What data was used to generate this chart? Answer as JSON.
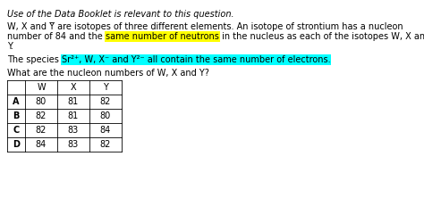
{
  "line1": "Use of the Data Booklet is relevant to this question.",
  "para1_line1": "W, X and Y̅ are isotopes of three different elements. An isotope of strontium has a nucleon",
  "para1_line2_pre": "number of 84 and the ",
  "para1_line2_hl": "same number of neutrons",
  "para1_line2_post": " in the nucleus as each of the isotopes W, X and",
  "para1_line3": "Y.",
  "para2_pre": "The species ",
  "para2_hl": "Sr²⁺, W, X⁻ and Y²⁻ all contain the same number of electrons.",
  "para3": "What are the nucleon numbers of W, X and Y?",
  "table_headers": [
    "",
    "W",
    "X",
    "Y"
  ],
  "table_rows": [
    [
      "A",
      "80",
      "81",
      "82"
    ],
    [
      "B",
      "82",
      "81",
      "80"
    ],
    [
      "C",
      "82",
      "83",
      "84"
    ],
    [
      "D",
      "84",
      "83",
      "82"
    ]
  ],
  "yellow": "#FFFF00",
  "cyan": "#00FFFF",
  "bg": "#ffffff",
  "font_size": 7.0
}
